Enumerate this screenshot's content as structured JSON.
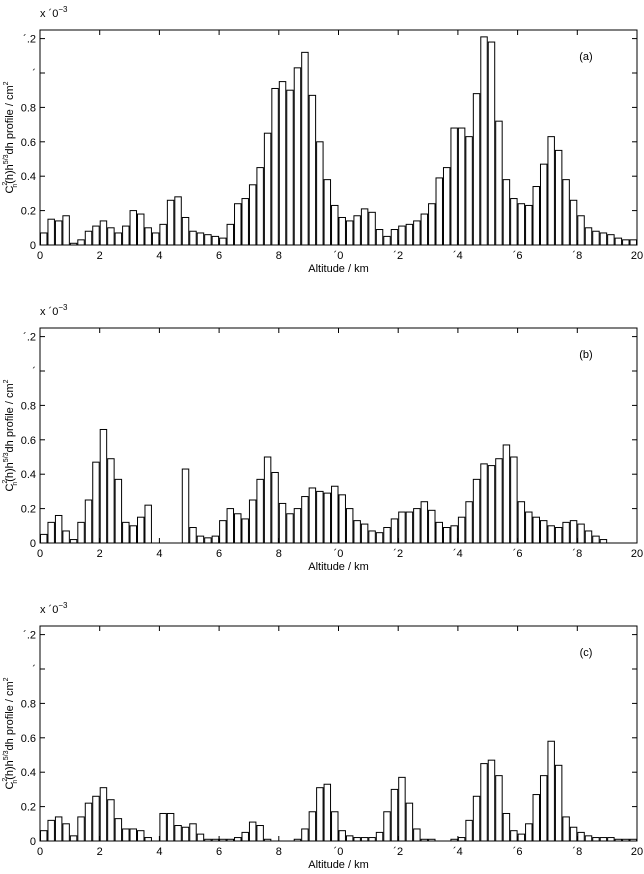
{
  "chart_data": [
    {
      "type": "histogram",
      "annotation": "(a)",
      "xlabel": "Altitude / km",
      "ylabel": [
        "C",
        "2",
        "n",
        "(h)h",
        "5/3",
        "dh profile / cm",
        "2"
      ],
      "multiplier": "x ´0",
      "multiplier_exp": "−3",
      "bins": [
        0,
        0.25,
        0.5,
        0.75,
        1,
        1.25,
        1.5,
        1.75,
        2,
        2.25,
        2.5,
        2.75,
        3,
        3.25,
        3.5,
        3.75,
        4,
        4.25,
        4.5,
        4.75,
        5,
        5.25,
        5.5,
        5.75,
        6,
        6.25,
        6.5,
        6.75,
        7,
        7.25,
        7.5,
        7.75,
        8,
        8.25,
        8.5,
        8.75,
        9,
        9.25,
        9.5,
        9.75,
        10,
        10.25,
        10.5,
        10.75,
        11,
        11.25,
        11.5,
        11.75,
        12,
        12.25,
        12.5,
        12.75,
        13,
        13.25,
        13.5,
        13.75,
        14,
        14.25,
        14.5,
        14.75,
        15,
        15.25,
        15.5,
        15.75,
        16,
        16.25,
        16.5,
        16.75,
        17,
        17.25,
        17.5,
        17.75,
        18,
        18.25,
        18.5,
        18.75,
        19,
        19.25,
        19.5,
        19.75,
        20
      ],
      "values": [
        0.07,
        0.15,
        0.14,
        0.17,
        0.01,
        0.03,
        0.08,
        0.11,
        0.14,
        0.1,
        0.07,
        0.11,
        0.2,
        0.18,
        0.1,
        0.07,
        0.12,
        0.26,
        0.28,
        0.16,
        0.08,
        0.07,
        0.06,
        0.05,
        0.04,
        0.12,
        0.24,
        0.27,
        0.35,
        0.45,
        0.65,
        0.91,
        0.95,
        0.9,
        1.03,
        1.12,
        0.87,
        0.6,
        0.38,
        0.23,
        0.16,
        0.14,
        0.17,
        0.21,
        0.19,
        0.09,
        0.05,
        0.09,
        0.11,
        0.12,
        0.14,
        0.18,
        0.24,
        0.39,
        0.45,
        0.68,
        0.68,
        0.63,
        0.88,
        1.21,
        1.18,
        0.72,
        0.38,
        0.27,
        0.24,
        0.23,
        0.34,
        0.47,
        0.63,
        0.55,
        0.38,
        0.26,
        0.17,
        0.1,
        0.08,
        0.07,
        0.06,
        0.04,
        0.03,
        0.03
      ],
      "color": "#ffffff",
      "edgecolor": "#000000",
      "xlim": [
        0,
        20
      ],
      "xticks": [
        0,
        2,
        4,
        6,
        8,
        {
          "value": 10,
          "label": "´0"
        },
        {
          "value": 12,
          "label": "´2"
        },
        {
          "value": 14,
          "label": "´4"
        },
        {
          "value": 16,
          "label": "´6"
        },
        {
          "value": 18,
          "label": "´8"
        },
        20
      ],
      "ylim": [
        0,
        1.25
      ],
      "yticks": [
        0,
        0.2,
        0.4,
        0.6,
        0.8,
        {
          "value": 1,
          "label": "´"
        },
        {
          "value": 1.2,
          "label": "´.2"
        }
      ]
    },
    {
      "type": "histogram",
      "annotation": "(b)",
      "xlabel": "Altitude / km",
      "ylabel": [
        "C",
        "2",
        "n",
        "(h)h",
        "5/3",
        "dh profile / cm",
        "2"
      ],
      "multiplier": "x ´0",
      "multiplier_exp": "−3",
      "bins": [
        0,
        0.25,
        0.5,
        0.75,
        1,
        1.25,
        1.5,
        1.75,
        2,
        2.25,
        2.5,
        2.75,
        3,
        3.25,
        3.5,
        3.75,
        4,
        4.25,
        4.5,
        4.75,
        5,
        5.25,
        5.5,
        5.75,
        6,
        6.25,
        6.5,
        6.75,
        7,
        7.25,
        7.5,
        7.75,
        8,
        8.25,
        8.5,
        8.75,
        9,
        9.25,
        9.5,
        9.75,
        10,
        10.25,
        10.5,
        10.75,
        11,
        11.25,
        11.5,
        11.75,
        12,
        12.25,
        12.5,
        12.75,
        13,
        13.25,
        13.5,
        13.75,
        14,
        14.25,
        14.5,
        14.75,
        15,
        15.25,
        15.5,
        15.75,
        16,
        16.25,
        16.5,
        16.75,
        17,
        17.25,
        17.5,
        17.75,
        18,
        18.25,
        18.5,
        18.75,
        19,
        19.25,
        19.5,
        19.75,
        20
      ],
      "values": [
        0.05,
        0.12,
        0.16,
        0.07,
        0.02,
        0.12,
        0.25,
        0.47,
        0.66,
        0.49,
        0.37,
        0.12,
        0.1,
        0.15,
        0.22,
        0,
        0,
        0,
        0,
        0.43,
        0.09,
        0.04,
        0.03,
        0.04,
        0.13,
        0.2,
        0.17,
        0.14,
        0.25,
        0.37,
        0.5,
        0.41,
        0.23,
        0.17,
        0.2,
        0.27,
        0.32,
        0.3,
        0.29,
        0.33,
        0.28,
        0.2,
        0.13,
        0.11,
        0.07,
        0.06,
        0.09,
        0.14,
        0.18,
        0.18,
        0.2,
        0.24,
        0.19,
        0.12,
        0.09,
        0.1,
        0.15,
        0.24,
        0.37,
        0.46,
        0.45,
        0.49,
        0.57,
        0.5,
        0.24,
        0.18,
        0.15,
        0.13,
        0.1,
        0.09,
        0.12,
        0.13,
        0.11,
        0.07,
        0.04,
        0.02,
        0,
        0,
        0,
        0
      ],
      "color": "#ffffff",
      "edgecolor": "#000000",
      "xlim": [
        0,
        20
      ],
      "xticks": [
        0,
        2,
        4,
        6,
        8,
        {
          "value": 10,
          "label": "´0"
        },
        {
          "value": 12,
          "label": "´2"
        },
        {
          "value": 14,
          "label": "´4"
        },
        {
          "value": 16,
          "label": "´6"
        },
        {
          "value": 18,
          "label": "´8"
        },
        20
      ],
      "ylim": [
        0,
        1.25
      ],
      "yticks": [
        0,
        0.2,
        0.4,
        0.6,
        0.8,
        {
          "value": 1,
          "label": "´"
        },
        {
          "value": 1.2,
          "label": "´.2"
        }
      ]
    },
    {
      "type": "histogram",
      "annotation": "(c)",
      "xlabel": "Altitude / km",
      "ylabel": [
        "C",
        "2",
        "n",
        "(h)h",
        "5/3",
        "dh profile / cm",
        "2"
      ],
      "multiplier": "x ´0",
      "multiplier_exp": "−3",
      "bins": [
        0,
        0.25,
        0.5,
        0.75,
        1,
        1.25,
        1.5,
        1.75,
        2,
        2.25,
        2.5,
        2.75,
        3,
        3.25,
        3.5,
        3.75,
        4,
        4.25,
        4.5,
        4.75,
        5,
        5.25,
        5.5,
        5.75,
        6,
        6.25,
        6.5,
        6.75,
        7,
        7.25,
        7.5,
        7.75,
        8,
        8.25,
        8.5,
        8.75,
        9,
        9.25,
        9.5,
        9.75,
        10,
        10.25,
        10.5,
        10.75,
        11,
        11.25,
        11.5,
        11.75,
        12,
        12.25,
        12.5,
        12.75,
        13,
        13.25,
        13.5,
        13.75,
        14,
        14.25,
        14.5,
        14.75,
        15,
        15.25,
        15.5,
        15.75,
        16,
        16.25,
        16.5,
        16.75,
        17,
        17.25,
        17.5,
        17.75,
        18,
        18.25,
        18.5,
        18.75,
        19,
        19.25,
        19.5,
        19.75,
        20
      ],
      "values": [
        0.06,
        0.12,
        0.14,
        0.1,
        0.03,
        0.14,
        0.22,
        0.26,
        0.31,
        0.24,
        0.13,
        0.07,
        0.07,
        0.06,
        0.02,
        0,
        0.16,
        0.16,
        0.09,
        0.08,
        0.1,
        0.04,
        0.01,
        0.01,
        0.01,
        0.01,
        0.02,
        0.05,
        0.11,
        0.09,
        0.01,
        0,
        0,
        0,
        0.01,
        0.07,
        0.17,
        0.31,
        0.33,
        0.17,
        0.06,
        0.03,
        0.02,
        0.02,
        0.02,
        0.05,
        0.17,
        0.3,
        0.37,
        0.22,
        0.07,
        0.01,
        0.01,
        0,
        0,
        0.01,
        0.02,
        0.12,
        0.26,
        0.45,
        0.47,
        0.38,
        0.16,
        0.06,
        0.04,
        0.1,
        0.27,
        0.38,
        0.58,
        0.44,
        0.14,
        0.08,
        0.05,
        0.03,
        0.02,
        0.02,
        0.02,
        0.01,
        0.01,
        0.01
      ],
      "color": "#ffffff",
      "edgecolor": "#000000",
      "xlim": [
        0,
        20
      ],
      "xticks": [
        0,
        2,
        4,
        6,
        8,
        {
          "value": 10,
          "label": "´0"
        },
        {
          "value": 12,
          "label": "´2"
        },
        {
          "value": 14,
          "label": "´4"
        },
        {
          "value": 16,
          "label": "´6"
        },
        {
          "value": 18,
          "label": "´8"
        },
        20
      ],
      "ylim": [
        0,
        1.25
      ],
      "yticks": [
        0,
        0.2,
        0.4,
        0.6,
        0.8,
        {
          "value": 1,
          "label": "´"
        },
        {
          "value": 1.2,
          "label": "´.2"
        }
      ]
    }
  ]
}
